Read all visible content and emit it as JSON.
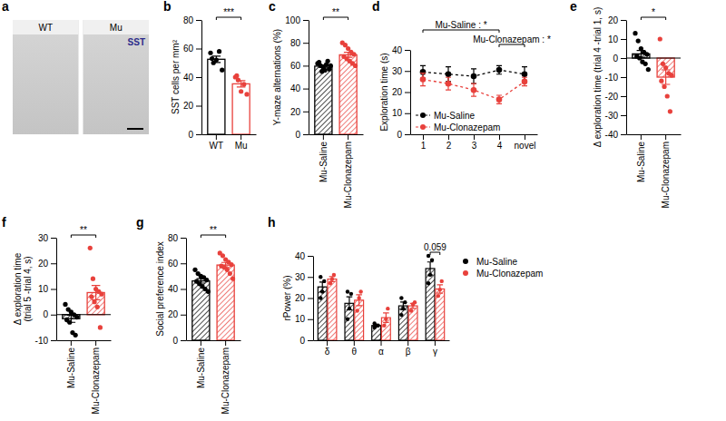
{
  "chart_data": [
    {
      "type": "image",
      "panel": "a",
      "categories": [
        "WT",
        "Mu"
      ],
      "annotations": [
        "SST"
      ]
    },
    {
      "type": "bar",
      "panel": "b",
      "ylabel": "SST cells per mm²",
      "categories": [
        "WT",
        "Mu"
      ],
      "values": [
        52.5,
        35.3
      ],
      "errors": [
        2.2,
        2.2
      ],
      "points": [
        [
          57,
          50,
          52,
          58,
          45,
          53
        ],
        [
          40,
          38,
          30,
          35,
          28,
          41
        ]
      ],
      "colors": [
        "#000000",
        "#e8413c"
      ],
      "ylim": [
        0,
        80
      ],
      "yticks": [
        0,
        20,
        40,
        60,
        80
      ],
      "annotations": [
        {
          "text": "***",
          "between": [
            "WT",
            "Mu"
          ]
        }
      ]
    },
    {
      "type": "bar",
      "panel": "c",
      "ylabel": "Y-maze alternations (%)",
      "categories": [
        "Mu-Saline",
        "Mu-Clonazepam"
      ],
      "values": [
        59.6,
        69.5
      ],
      "errors": [
        1,
        2.2
      ],
      "points": [
        [
          62,
          60,
          58,
          61,
          57,
          63,
          55,
          56,
          64,
          60
        ],
        [
          80,
          78,
          75,
          72,
          70,
          68,
          66,
          64,
          62,
          60
        ]
      ],
      "colors": [
        "#000000",
        "#e8413c"
      ],
      "ylim": [
        0,
        100
      ],
      "yticks": [
        0,
        20,
        40,
        60,
        80,
        100
      ],
      "annotations": [
        {
          "text": "**",
          "between": [
            "Mu-Saline",
            "Mu-Clonazepam"
          ]
        }
      ]
    },
    {
      "type": "line",
      "panel": "d",
      "ylabel": "Exploration time (s)",
      "categories": [
        "1",
        "2",
        "3",
        "4",
        "novel"
      ],
      "series": [
        {
          "name": "Mu-Saline",
          "color": "#000000",
          "marker": "circle",
          "line_style": "dashed",
          "values": [
            29.5,
            28.5,
            27.5,
            30.5,
            28.5
          ],
          "errors": [
            3,
            3.5,
            3.5,
            2,
            3.5
          ]
        },
        {
          "name": "Mu-Clonazepam",
          "color": "#e8413c",
          "marker": "circle",
          "line_style": "dashed",
          "values": [
            26,
            24,
            21,
            16.5,
            25
          ],
          "errors": [
            3,
            3,
            3,
            2,
            2
          ]
        }
      ],
      "ylim": [
        0,
        40
      ],
      "yticks": [
        0,
        10,
        20,
        30,
        40
      ],
      "legend": "lower left",
      "annotations": [
        {
          "text": "Mu-Saline : *",
          "between": [
            "1",
            "4"
          ]
        },
        {
          "text": "Mu-Clonazepam : *",
          "between": [
            "4",
            "novel"
          ]
        }
      ]
    },
    {
      "type": "bar",
      "panel": "e",
      "ylabel": "Δ exploration time (trial 4 -trial 1, s)",
      "categories": [
        "Mu-Saline",
        "Mu-Clonazepam"
      ],
      "values": [
        2.2,
        -10
      ],
      "errors": [
        1.8,
        3.8
      ],
      "points": [
        [
          13,
          9,
          5,
          3,
          2,
          1,
          0,
          -2,
          -3,
          -6
        ],
        [
          10,
          -3,
          -5,
          -8,
          -9,
          -12,
          -15,
          -20,
          -28
        ]
      ],
      "colors": [
        "#000000",
        "#e8413c"
      ],
      "ylim": [
        -40,
        20
      ],
      "yticks": [
        -40,
        -30,
        -20,
        -10,
        0,
        10,
        20
      ],
      "annotations": [
        {
          "text": "*",
          "between": [
            "Mu-Saline",
            "Mu-Clonazepam"
          ]
        }
      ]
    },
    {
      "type": "bar",
      "panel": "f",
      "ylabel": "Δ exploration time (trial 5 -trial 4, s)",
      "categories": [
        "Mu-Saline",
        "Mu-Clonazepam"
      ],
      "values": [
        -1.6,
        8.6
      ],
      "errors": [
        1.4,
        2.8
      ],
      "points": [
        [
          4,
          2,
          1,
          0,
          -1,
          -2,
          -3,
          -7,
          -8
        ],
        [
          26,
          14,
          10,
          9,
          8,
          7,
          5,
          3,
          -5
        ]
      ],
      "colors": [
        "#000000",
        "#e8413c"
      ],
      "ylim": [
        -10,
        30
      ],
      "yticks": [
        -10,
        0,
        10,
        20,
        30
      ],
      "annotations": [
        {
          "text": "**",
          "between": [
            "Mu-Saline",
            "Mu-Clonazepam"
          ]
        }
      ]
    },
    {
      "type": "bar",
      "panel": "g",
      "ylabel": "Social preference index",
      "categories": [
        "Mu-Saline",
        "Mu-Clonazepam"
      ],
      "values": [
        46.3,
        58.7
      ],
      "errors": [
        1.7,
        2
      ],
      "points": [
        [
          55,
          52,
          50,
          49,
          47,
          46,
          44,
          42,
          40,
          38
        ],
        [
          68,
          66,
          63,
          61,
          59,
          58,
          57,
          55,
          52,
          48
        ]
      ],
      "colors": [
        "#000000",
        "#e8413c"
      ],
      "ylim": [
        0,
        80
      ],
      "yticks": [
        0,
        20,
        40,
        60,
        80
      ],
      "annotations": [
        {
          "text": "**",
          "between": [
            "Mu-Saline",
            "Mu-Clonazepam"
          ]
        }
      ]
    },
    {
      "type": "bar",
      "panel": "h",
      "ylabel": "rPower (%)",
      "categories": [
        "δ",
        "θ",
        "α",
        "β",
        "γ"
      ],
      "series": [
        {
          "name": "Mu-Saline",
          "color": "#000000",
          "values": [
            25.3,
            17.5,
            7,
            16.3,
            34
          ],
          "errors": [
            2.3,
            3.1,
            0.4,
            1.8,
            3.1
          ],
          "points": [
            [
              20,
              23,
              28,
              30
            ],
            [
              10,
              15,
              22,
              23
            ],
            [
              6,
              7,
              7,
              8
            ],
            [
              12,
              15,
              18,
              20
            ],
            [
              27,
              31,
              38,
              40
            ]
          ]
        },
        {
          "name": "Mu-Clonazepam",
          "color": "#e8413c",
          "values": [
            29,
            19,
            10.7,
            16.3,
            24.3
          ],
          "errors": [
            1.2,
            2.6,
            2.3,
            1.2,
            2
          ],
          "points": [
            [
              27,
              29,
              31
            ],
            [
              14,
              20,
              23
            ],
            [
              7,
              10,
              15
            ],
            [
              14,
              17,
              18
            ],
            [
              21,
              24,
              28
            ]
          ]
        }
      ],
      "ylim": [
        0,
        40
      ],
      "yticks": [
        0,
        10,
        20,
        30,
        40
      ],
      "legend": "right",
      "annotations": [
        {
          "text": "0.059",
          "category": "γ"
        }
      ]
    }
  ]
}
